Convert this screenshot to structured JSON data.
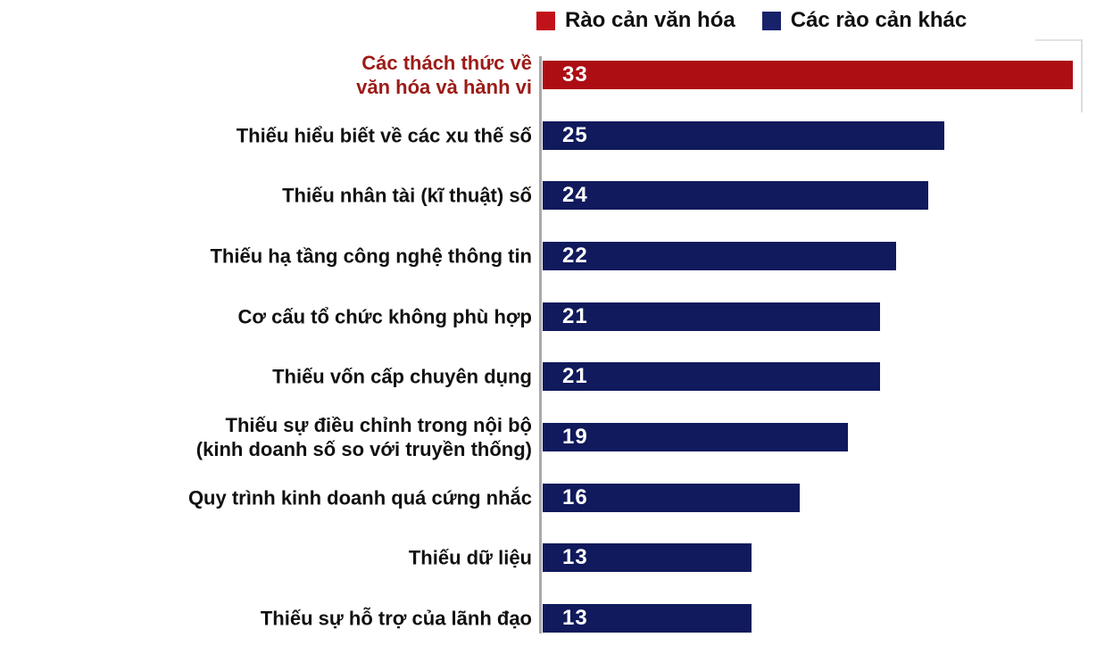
{
  "legend": [
    {
      "label": "Rào cản văn hóa",
      "color": "#c1121a"
    },
    {
      "label": "Các rào cản khác",
      "color": "#17226b"
    }
  ],
  "chart_data": {
    "type": "bar",
    "orientation": "horizontal",
    "title": "",
    "xlabel": "",
    "ylabel": "",
    "xlim": [
      0,
      33
    ],
    "grid": false,
    "legend_position": "top",
    "value_labels": "inside-left",
    "categories": [
      "Các thách thức về văn hóa và hành vi",
      "Thiếu hiểu biết về các xu thế số",
      "Thiếu nhân  tài (kĩ thuật) số",
      "Thiếu hạ tầng công nghệ thông tin",
      "Cơ cấu tổ chức không phù hợp",
      "Thiếu vốn cấp chuyên dụng",
      "Thiếu sự điều chỉnh trong nội bộ (kinh doanh số so với truyền thống)",
      "Quy trình kinh doanh quá cứng nhắc",
      "Thiếu dữ liệu",
      "Thiếu sự hỗ trợ của lãnh đạo"
    ],
    "values": [
      33,
      25,
      24,
      22,
      21,
      21,
      19,
      16,
      13,
      13
    ],
    "series": [
      {
        "name": "Rào cản văn hóa",
        "color": "#ad0e13",
        "row_indexes": [
          0
        ]
      },
      {
        "name": "Các rào cản khác",
        "color": "#101a5c",
        "row_indexes": [
          1,
          2,
          3,
          4,
          5,
          6,
          7,
          8,
          9
        ]
      }
    ],
    "rows": [
      {
        "label_lines": [
          "Các thách thức về",
          "văn hóa và hành vi"
        ],
        "value": 33,
        "series": "Rào cản văn hóa",
        "bar_color": "#ad0e13",
        "label_color": "#9c1b17"
      },
      {
        "label_lines": [
          "Thiếu hiểu biết về các xu thế số"
        ],
        "value": 25,
        "series": "Các rào cản khác",
        "bar_color": "#101a5c",
        "label_color": "#111111"
      },
      {
        "label_lines": [
          "Thiếu nhân  tài (kĩ thuật) số"
        ],
        "value": 24,
        "series": "Các rào cản khác",
        "bar_color": "#101a5c",
        "label_color": "#111111"
      },
      {
        "label_lines": [
          "Thiếu hạ tầng công nghệ thông tin"
        ],
        "value": 22,
        "series": "Các rào cản khác",
        "bar_color": "#101a5c",
        "label_color": "#111111"
      },
      {
        "label_lines": [
          "Cơ cấu tổ chức không phù hợp"
        ],
        "value": 21,
        "series": "Các rào cản khác",
        "bar_color": "#101a5c",
        "label_color": "#111111"
      },
      {
        "label_lines": [
          "Thiếu vốn cấp chuyên dụng"
        ],
        "value": 21,
        "series": "Các rào cản khác",
        "bar_color": "#101a5c",
        "label_color": "#111111"
      },
      {
        "label_lines": [
          "Thiếu sự điều chỉnh trong nội bộ",
          "(kinh doanh số so với truyền thống)"
        ],
        "value": 19,
        "series": "Các rào cản khác",
        "bar_color": "#101a5c",
        "label_color": "#111111"
      },
      {
        "label_lines": [
          "Quy trình kinh doanh quá cứng nhắc"
        ],
        "value": 16,
        "series": "Các rào cản khác",
        "bar_color": "#101a5c",
        "label_color": "#111111"
      },
      {
        "label_lines": [
          "Thiếu dữ liệu"
        ],
        "value": 13,
        "series": "Các rào cản khác",
        "bar_color": "#101a5c",
        "label_color": "#111111"
      },
      {
        "label_lines": [
          "Thiếu sự hỗ trợ của lãnh đạo"
        ],
        "value": 13,
        "series": "Các rào cản khác",
        "bar_color": "#101a5c",
        "label_color": "#111111"
      }
    ]
  }
}
